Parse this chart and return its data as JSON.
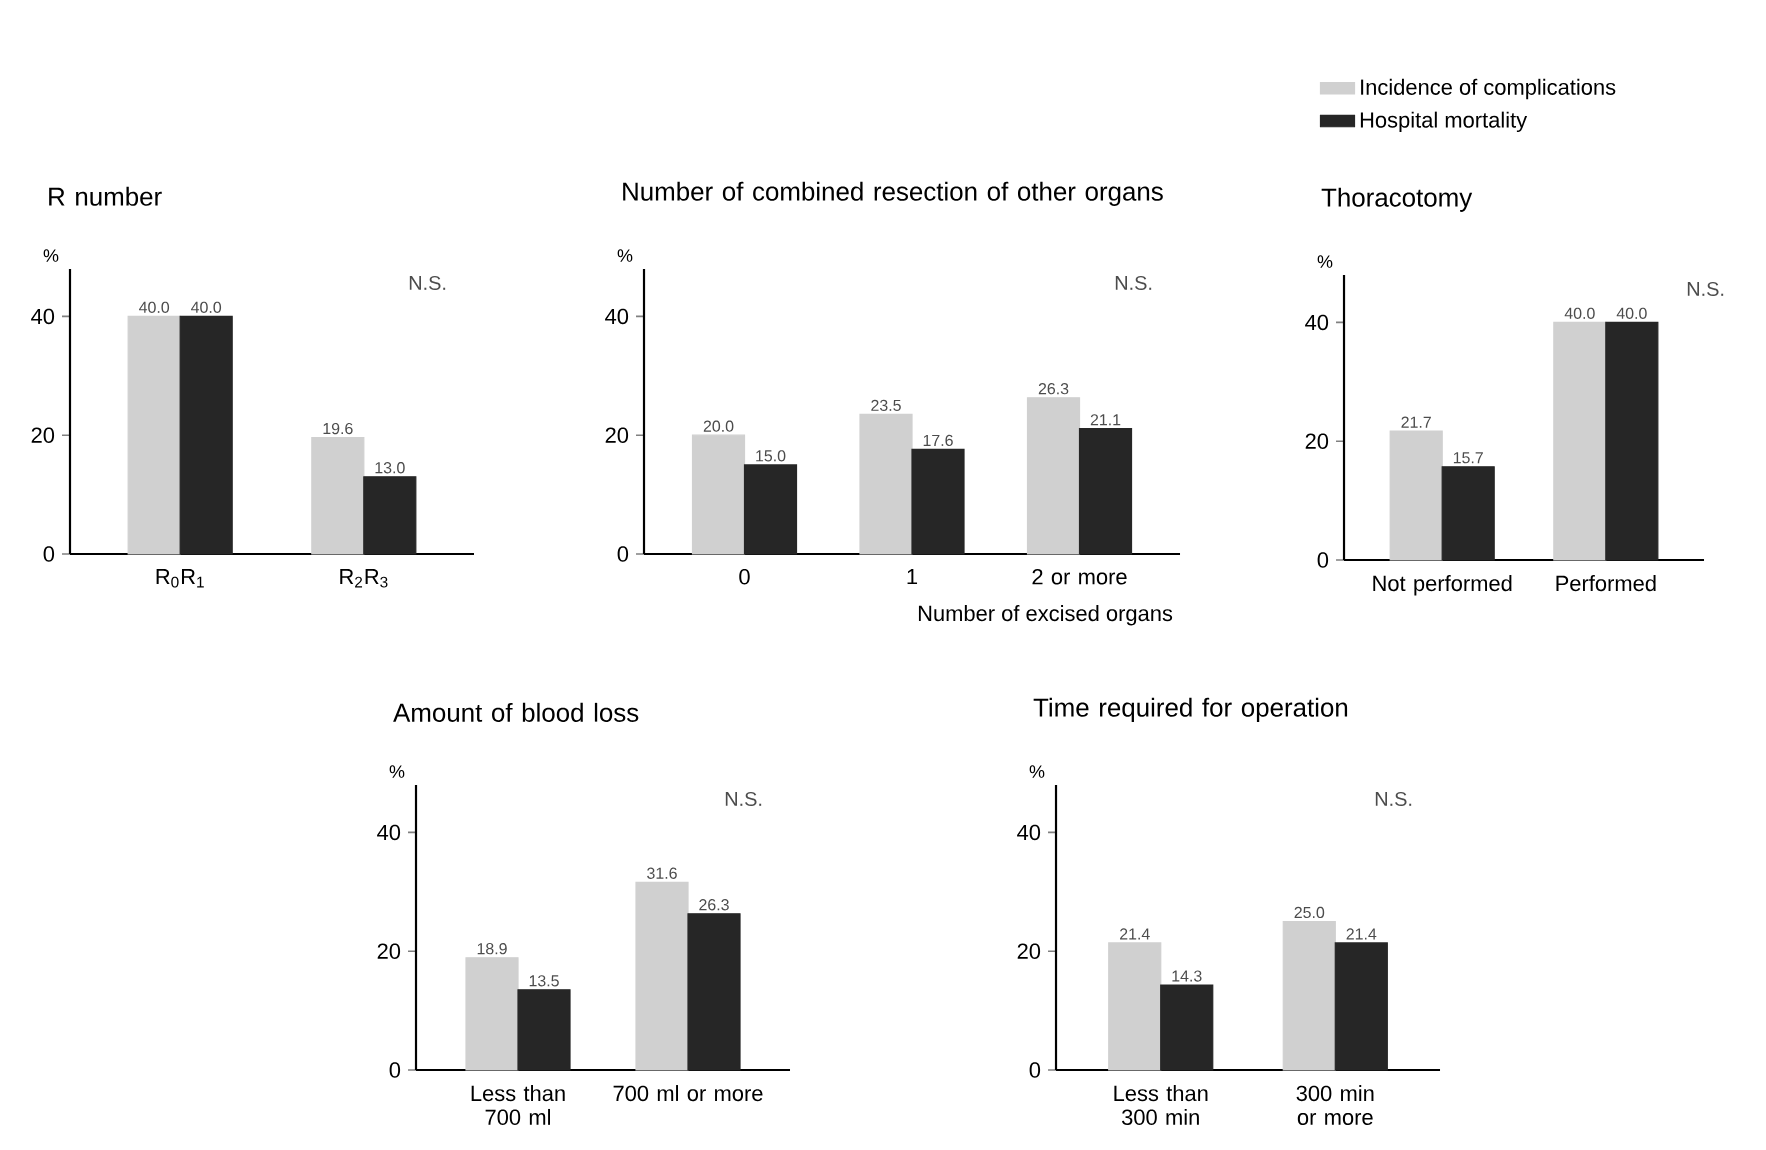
{
  "chart_data": [
    {
      "type": "bar",
      "title": "R number",
      "ylabel": "%",
      "categories": [
        "R$_{0}$R$_{1}$",
        "R$_{2}$R$_{3}$"
      ],
      "series": [
        {
          "color": "#d0d0d0",
          "values": [
            40.0,
            19.6
          ],
          "value_labels": [
            "40.0",
            "19.6"
          ]
        },
        {
          "color": "#262626",
          "values": [
            40.0,
            13.0
          ],
          "value_labels": [
            "40.0",
            "13.0"
          ]
        }
      ],
      "ylim": [
        0,
        48
      ],
      "yticks": [
        0,
        20,
        40
      ],
      "annotations": [
        "N.S."
      ]
    },
    {
      "type": "bar",
      "title": "Number of combined resection of other organs",
      "ylabel": "%",
      "xlabel": "Number of excised organs",
      "categories": [
        "0",
        "1",
        "2 or more"
      ],
      "series": [
        {
          "color": "#d0d0d0",
          "values": [
            20.0,
            23.5,
            26.3
          ],
          "value_labels": [
            "20.0",
            "23.5",
            "26.3"
          ]
        },
        {
          "color": "#262626",
          "values": [
            15.0,
            17.6,
            21.1
          ],
          "value_labels": [
            "15.0",
            "17.6",
            "21.1"
          ]
        }
      ],
      "ylim": [
        0,
        48
      ],
      "yticks": [
        0,
        20,
        40
      ],
      "annotations": [
        "N.S."
      ]
    },
    {
      "type": "bar",
      "title": "Thoracotomy",
      "ylabel": "%",
      "categories": [
        "Not performed",
        "Performed"
      ],
      "series": [
        {
          "name": "Incidence of complications",
          "color": "#d0d0d0",
          "values": [
            21.7,
            40.0
          ],
          "value_labels": [
            "21.7",
            "40.0"
          ]
        },
        {
          "name": "Hospital mortality",
          "color": "#262626",
          "values": [
            15.7,
            40.0
          ],
          "value_labels": [
            "15.7",
            "40.0"
          ]
        }
      ],
      "ylim": [
        0,
        48
      ],
      "yticks": [
        0,
        20,
        40
      ],
      "annotations": [
        "N.S."
      ],
      "legend": "top"
    },
    {
      "type": "bar",
      "title": "Amount of blood loss",
      "ylabel": "%",
      "categories": [
        "Less than 700 ml",
        "700 ml or more"
      ],
      "series": [
        {
          "color": "#d0d0d0",
          "values": [
            18.9,
            31.6
          ],
          "value_labels": [
            "18.9",
            "31.6"
          ]
        },
        {
          "color": "#262626",
          "values": [
            13.5,
            26.3
          ],
          "value_labels": [
            "13.5",
            "26.3"
          ]
        }
      ],
      "ylim": [
        0,
        48
      ],
      "yticks": [
        0,
        20,
        40
      ],
      "annotations": [
        "N.S."
      ]
    },
    {
      "type": "bar",
      "title": "Time required for operation",
      "ylabel": "%",
      "categories": [
        "Less than 300 min",
        "300 min or more"
      ],
      "series": [
        {
          "color": "#d0d0d0",
          "values": [
            21.4,
            25.0
          ],
          "value_labels": [
            "21.4",
            "25.0"
          ]
        },
        {
          "color": "#262626",
          "values": [
            14.3,
            21.4
          ],
          "value_labels": [
            "14.3",
            "21.4"
          ]
        }
      ],
      "ylim": [
        0,
        48
      ],
      "yticks": [
        0,
        20,
        40
      ],
      "annotations": [
        "N.S."
      ]
    }
  ]
}
